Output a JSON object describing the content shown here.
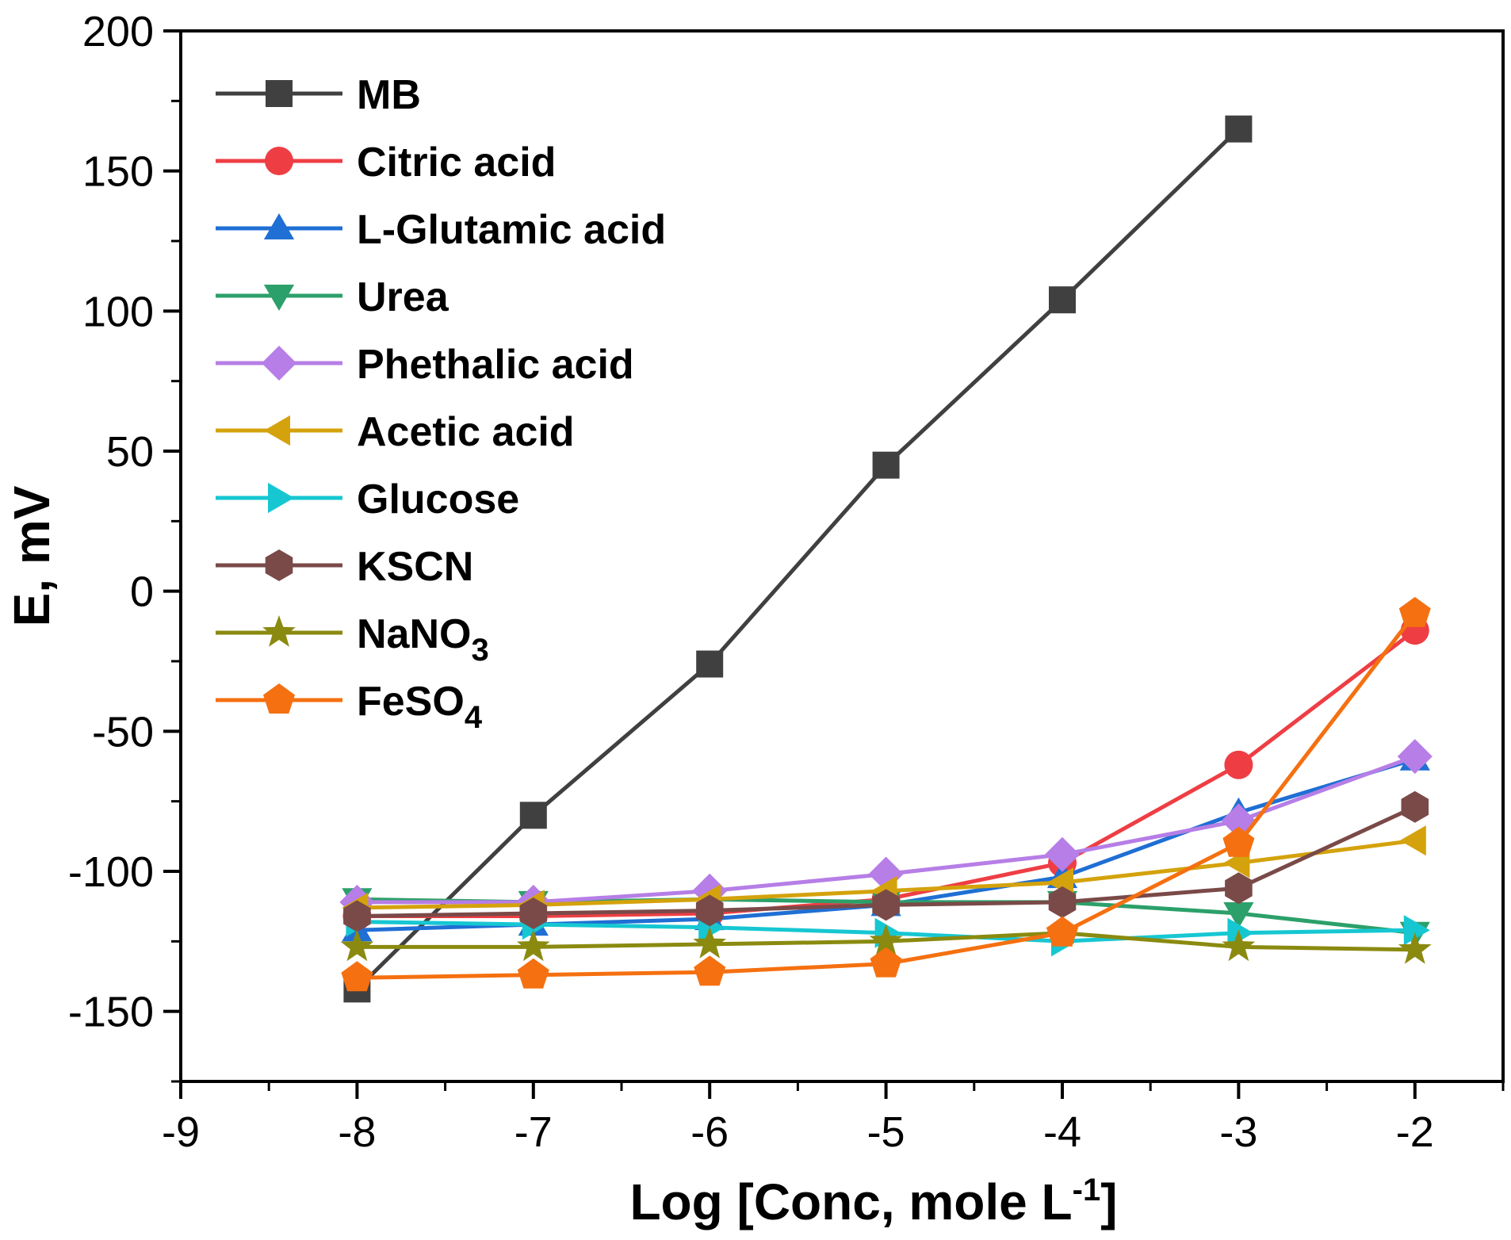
{
  "chart_data": {
    "type": "line",
    "xlabel_main": "Log [Conc, mole L",
    "xlabel_sup": "-1",
    "xlabel_end": "]",
    "ylabel": "E, mV",
    "xlim": [
      -9,
      -1.5
    ],
    "ylim": [
      -175,
      200
    ],
    "xticks": [
      -9,
      -8,
      -7,
      -6,
      -5,
      -4,
      -3,
      -2
    ],
    "yticks": [
      -150,
      -100,
      -50,
      0,
      50,
      100,
      150,
      200
    ],
    "legend_position": "top-left",
    "x": [
      -8,
      -7,
      -6,
      -5,
      -4,
      -3,
      -2
    ],
    "series": [
      {
        "name": "MB",
        "sub": "",
        "color": "#404040",
        "marker": "square",
        "x": [
          -8,
          -7,
          -6,
          -5,
          -4,
          -3
        ],
        "values": [
          -142,
          -80,
          -26,
          45,
          104,
          165
        ]
      },
      {
        "name": "Citric acid",
        "sub": "",
        "color": "#ee3e44",
        "marker": "circle",
        "x": [
          -8,
          -7,
          -6,
          -5,
          -4,
          -3,
          -2
        ],
        "values": [
          -116,
          -116,
          -115,
          -110,
          -97,
          -62,
          -14
        ]
      },
      {
        "name": "L-Glutamic acid",
        "sub": "",
        "color": "#1f6fd4",
        "marker": "triangle-up",
        "x": [
          -8,
          -7,
          -6,
          -5,
          -4,
          -3,
          -2
        ],
        "values": [
          -121,
          -119,
          -117,
          -112,
          -102,
          -79,
          -60
        ]
      },
      {
        "name": "Urea",
        "sub": "",
        "color": "#2ca06a",
        "marker": "triangle-down",
        "x": [
          -8,
          -7,
          -6,
          -5,
          -4,
          -3,
          -2
        ],
        "values": [
          -110,
          -111,
          -110,
          -111,
          -111,
          -115,
          -122
        ]
      },
      {
        "name": "Phethalic acid",
        "sub": "",
        "color": "#b67ee6",
        "marker": "diamond",
        "x": [
          -8,
          -7,
          -6,
          -5,
          -4,
          -3,
          -2
        ],
        "values": [
          -111,
          -111,
          -107,
          -101,
          -94,
          -82,
          -59
        ]
      },
      {
        "name": "Acetic acid",
        "sub": "",
        "color": "#d4a20c",
        "marker": "triangle-left",
        "x": [
          -8,
          -7,
          -6,
          -5,
          -4,
          -3,
          -2
        ],
        "values": [
          -113,
          -112,
          -110,
          -107,
          -104,
          -97,
          -89
        ]
      },
      {
        "name": "Glucose",
        "sub": "",
        "color": "#16c7d2",
        "marker": "triangle-right",
        "x": [
          -8,
          -7,
          -6,
          -5,
          -4,
          -3,
          -2
        ],
        "values": [
          -118,
          -119,
          -120,
          -122,
          -125,
          -122,
          -121
        ]
      },
      {
        "name": "KSCN",
        "sub": "",
        "color": "#7a4a48",
        "marker": "hexagon",
        "x": [
          -8,
          -7,
          -6,
          -5,
          -4,
          -3,
          -2
        ],
        "values": [
          -116,
          -115,
          -114,
          -112,
          -111,
          -106,
          -77
        ]
      },
      {
        "name": "NaNO",
        "sub": "3",
        "color": "#8a8a10",
        "marker": "star",
        "x": [
          -8,
          -7,
          -6,
          -5,
          -4,
          -3,
          -2
        ],
        "values": [
          -127,
          -127,
          -126,
          -125,
          -122,
          -127,
          -128
        ]
      },
      {
        "name": "FeSO",
        "sub": "4",
        "color": "#f57010",
        "marker": "pentagon",
        "x": [
          -8,
          -7,
          -6,
          -5,
          -4,
          -3,
          -2
        ],
        "values": [
          -138,
          -137,
          -136,
          -133,
          -122,
          -90,
          -8
        ]
      }
    ]
  }
}
